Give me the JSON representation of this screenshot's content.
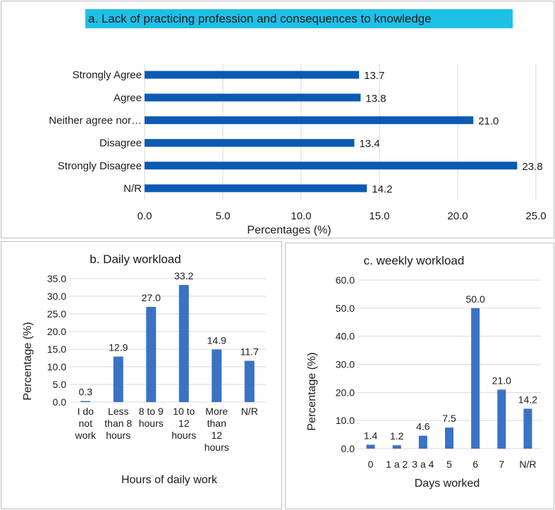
{
  "chart_data": [
    {
      "id": "a",
      "type": "bar",
      "orientation": "horizontal",
      "title": "a. Lack of practicing profession and consequences to knowledge",
      "xlabel": "Percentages (%)",
      "ylabel": "",
      "categories": [
        "Strongly Agree",
        "Agree",
        "Neither agree nor…",
        "Disagree",
        "Strongly Disagree",
        "N/R"
      ],
      "values": [
        13.7,
        13.8,
        21.0,
        13.4,
        23.8,
        14.2
      ],
      "value_labels": [
        "13.7",
        "13.8",
        "21.0",
        "13.4",
        "23.8",
        "14.2"
      ],
      "xlim": [
        0,
        25
      ],
      "ticks": [
        "0.0",
        "5.0",
        "10.0",
        "15.0",
        "20.0",
        "25.0"
      ],
      "grid": true,
      "colors": {
        "bar": "#0a5bb5",
        "title_background": "#1ec0e6"
      }
    },
    {
      "id": "b",
      "type": "bar",
      "orientation": "vertical",
      "title": "b. Daily workload",
      "xlabel": "Hours of daily work",
      "ylabel": "Percentage (%)",
      "categories": [
        [
          "I do",
          "not",
          "work"
        ],
        [
          "Less",
          "than 8",
          "hours"
        ],
        [
          "8 to 9",
          "hours"
        ],
        [
          "10 to",
          "12",
          "hours"
        ],
        [
          "More",
          "than",
          "12",
          "hours"
        ],
        [
          "N/R"
        ]
      ],
      "values": [
        0.3,
        12.9,
        27.0,
        33.2,
        14.9,
        11.7
      ],
      "value_labels": [
        "0.3",
        "12.9",
        "27.0",
        "33.2",
        "14.9",
        "11.7"
      ],
      "ylim": [
        0,
        35
      ],
      "ticks": [
        "0.0",
        "5.0",
        "10.0",
        "15.0",
        "20.0",
        "25.0",
        "30.0",
        "35.0"
      ],
      "grid": true,
      "colors": {
        "bar": "#3b72c4"
      }
    },
    {
      "id": "c",
      "type": "bar",
      "orientation": "vertical",
      "title": "c. weekly workload",
      "xlabel": "Days worked",
      "ylabel": "Percentage (%)",
      "categories": [
        [
          "0"
        ],
        [
          "1 a 2"
        ],
        [
          "3 a 4"
        ],
        [
          "5"
        ],
        [
          "6"
        ],
        [
          "7"
        ],
        [
          "N/R"
        ]
      ],
      "values": [
        1.4,
        1.2,
        4.6,
        7.5,
        50.0,
        21.0,
        14.2
      ],
      "value_labels": [
        "1.4",
        "1.2",
        "4.6",
        "7.5",
        "50.0",
        "21.0",
        "14.2"
      ],
      "ylim": [
        0,
        60
      ],
      "ticks": [
        "0.0",
        "10.0",
        "20.0",
        "30.0",
        "40.0",
        "50.0",
        "60.0"
      ],
      "grid": true,
      "colors": {
        "bar": "#3b72c4"
      }
    }
  ]
}
